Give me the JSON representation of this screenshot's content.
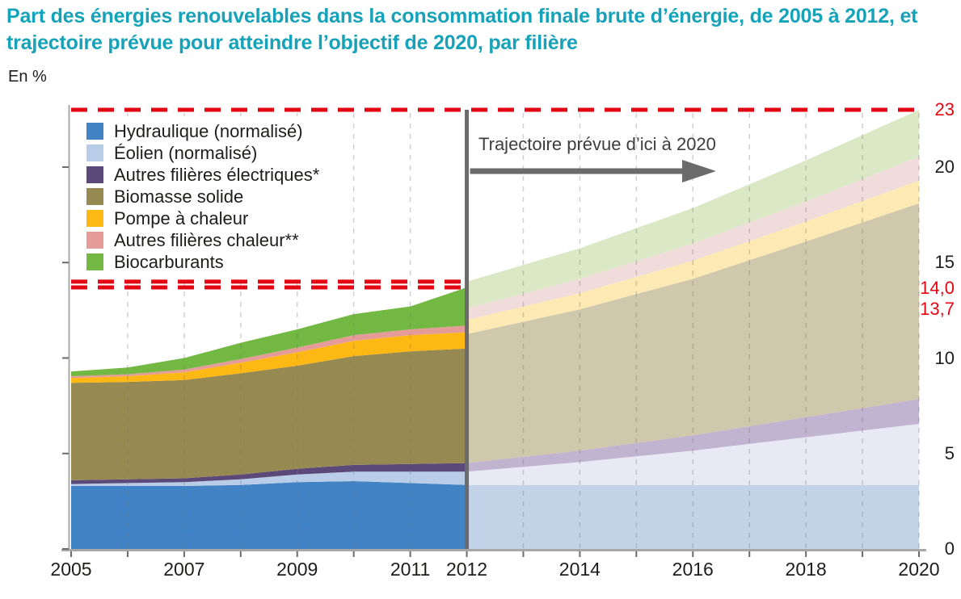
{
  "title": "Part des énergies renouvelables dans la consommation finale brute d’énergie, de 2005 à 2012, et trajectoire prévue pour atteindre l’objectif de 2020, par filière",
  "unit_label": "En %",
  "annotation": {
    "text": "Trajectoire prévue d’ici à 2020"
  },
  "palette": {
    "title_color": "#16a2b8",
    "reference_red": "#e30613",
    "axis_gray": "#a8a8a8",
    "tick_gray": "#6b6b6b",
    "divider_gray": "#6b6b6b",
    "text_black": "#1d1d1b"
  },
  "axes": {
    "y_unit": "%",
    "ylim": [
      0,
      23
    ],
    "y_ticks": [
      {
        "label": "23",
        "value": 23,
        "color": "red",
        "dy": 0
      },
      {
        "label": "20",
        "value": 20,
        "color": "black",
        "dy": 0
      },
      {
        "label": "15",
        "value": 15,
        "color": "black",
        "dy": 0
      },
      {
        "label": "14,0",
        "value": 14.0,
        "color": "red",
        "dy": 8
      },
      {
        "label": "13,7",
        "value": 13.7,
        "color": "red",
        "dy": 27
      },
      {
        "label": "10",
        "value": 10,
        "color": "black",
        "dy": 0
      },
      {
        "label": "5",
        "value": 5,
        "color": "black",
        "dy": 0
      },
      {
        "label": "0",
        "value": 0,
        "color": "black",
        "dy": 0
      }
    ],
    "x_tick_labels": [
      {
        "label": "2005",
        "year": 2005
      },
      {
        "label": "2007",
        "year": 2007
      },
      {
        "label": "2009",
        "year": 2009
      },
      {
        "label": "2011",
        "year": 2011
      },
      {
        "label": "2012",
        "year": 2012
      },
      {
        "label": "2014",
        "year": 2014
      },
      {
        "label": "2016",
        "year": 2016
      },
      {
        "label": "2018",
        "year": 2018
      },
      {
        "label": "2020",
        "year": 2020
      }
    ]
  },
  "chart_data": {
    "type": "area",
    "stacked": true,
    "title": "Part des énergies renouvelables dans la consommation finale brute d’énergie, de 2005 à 2012, et trajectoire prévue pour atteindre l’objectif de 2020, par filière",
    "xlabel": "",
    "ylabel": "En %",
    "xlim": [
      2005,
      2020
    ],
    "ylim": [
      0,
      23
    ],
    "grid": "vertical-dashed",
    "legend_position": "top-left",
    "years_actual": [
      2005,
      2006,
      2007,
      2008,
      2009,
      2010,
      2011,
      2012
    ],
    "years_forecast": [
      2012,
      2014,
      2016,
      2018,
      2020
    ],
    "series": [
      {
        "name": "Hydraulique (normalisé)",
        "color": "#4183c4",
        "forecast_color": "#c2d3e8",
        "actual": [
          3.3,
          3.3,
          3.3,
          3.35,
          3.5,
          3.55,
          3.45,
          3.35
        ],
        "forecast": [
          3.35,
          3.35,
          3.35,
          3.35,
          3.35
        ]
      },
      {
        "name": "Éolien (normalisé)",
        "color": "#b9cde8",
        "forecast_color": "#e9e9f6",
        "actual": [
          0.1,
          0.15,
          0.2,
          0.3,
          0.4,
          0.5,
          0.6,
          0.7
        ],
        "forecast": [
          0.7,
          1.2,
          1.8,
          2.5,
          3.2
        ]
      },
      {
        "name": "Autres filières électriques*",
        "color": "#5b4979",
        "forecast_color": "#c0b4d0",
        "actual": [
          0.2,
          0.2,
          0.2,
          0.25,
          0.3,
          0.35,
          0.4,
          0.45
        ],
        "forecast": [
          0.45,
          0.6,
          0.8,
          1.05,
          1.3
        ]
      },
      {
        "name": "Biomasse solide",
        "color": "#968a52",
        "forecast_color": "#cfc8ad",
        "actual": [
          5.1,
          5.1,
          5.15,
          5.3,
          5.4,
          5.7,
          5.9,
          6.0
        ],
        "forecast": [
          6.75,
          7.4,
          8.2,
          9.2,
          10.25
        ]
      },
      {
        "name": "Pompe à chaleur",
        "color": "#fdb813",
        "forecast_color": "#fce9b4",
        "actual": [
          0.25,
          0.3,
          0.4,
          0.55,
          0.7,
          0.8,
          0.85,
          0.85
        ],
        "forecast": [
          0.75,
          0.85,
          0.95,
          1.05,
          1.2
        ]
      },
      {
        "name": "Autres filières chaleur**",
        "color": "#e59c98",
        "forecast_color": "#f0dcdb",
        "actual": [
          0.1,
          0.1,
          0.15,
          0.2,
          0.25,
          0.3,
          0.3,
          0.35
        ],
        "forecast": [
          0.6,
          0.75,
          0.9,
          1.05,
          1.25
        ]
      },
      {
        "name": "Biocarburants",
        "color": "#72b843",
        "forecast_color": "#dae8c6",
        "actual": [
          0.25,
          0.35,
          0.6,
          0.85,
          0.95,
          1.1,
          1.2,
          2.0
        ],
        "forecast": [
          1.4,
          1.6,
          1.85,
          2.15,
          2.45
        ]
      }
    ],
    "totals": {
      "2005": 9.3,
      "2012_actual": 13.7,
      "2012_trajectory": 14.0,
      "2020_target": 23.0
    },
    "reference_lines": [
      {
        "value": 23,
        "label": "23",
        "span": "full"
      },
      {
        "value": 14.0,
        "label": "14,0",
        "span": "to_2012"
      },
      {
        "value": 13.7,
        "label": "13,7",
        "span": "to_2012"
      }
    ],
    "divider_year": 2012
  }
}
